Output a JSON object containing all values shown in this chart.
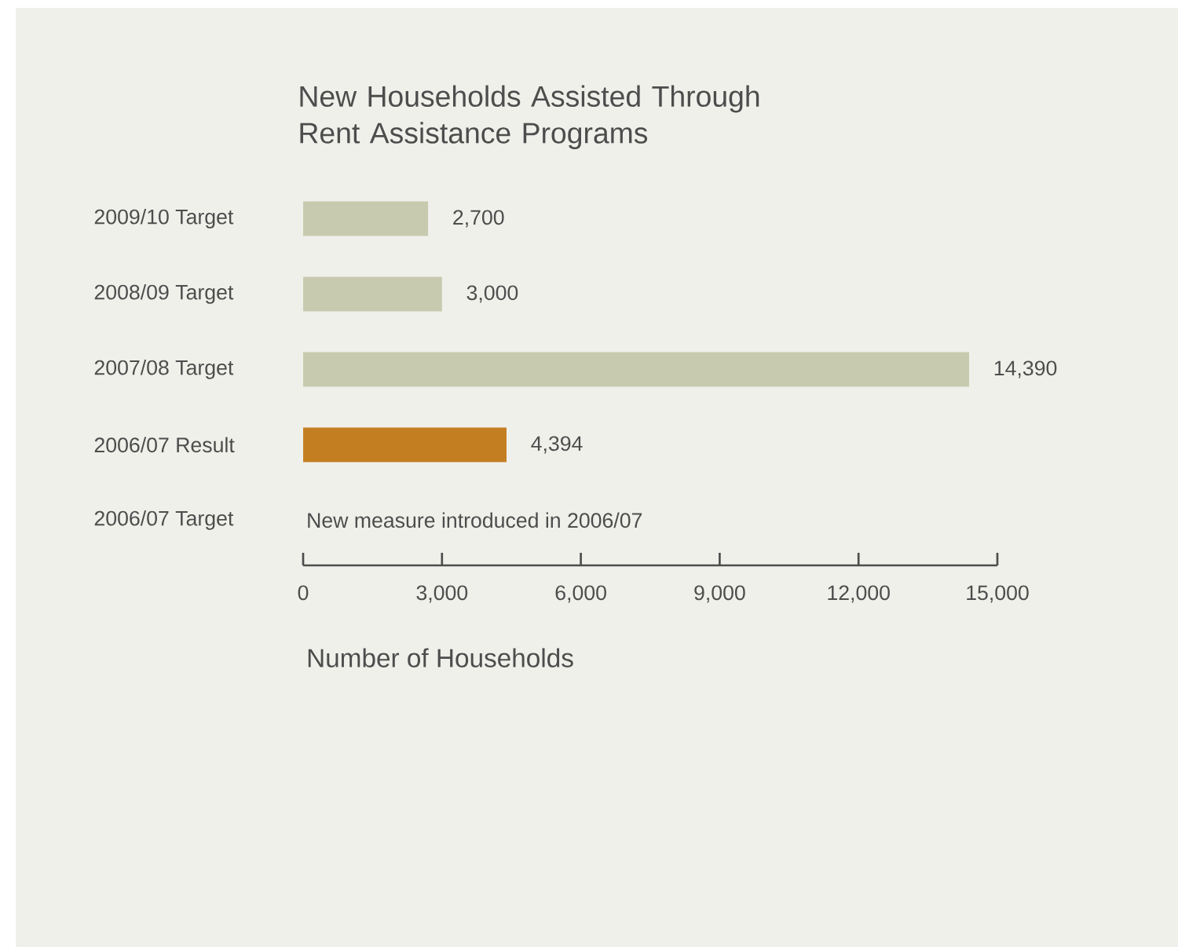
{
  "chart_data": {
    "type": "bar",
    "orientation": "horizontal",
    "title": "New Households Assisted Through Rent Assistance Programs",
    "xlabel": "Number of Households",
    "categories": [
      "2009/10 Target",
      "2008/09 Target",
      "2007/08 Target",
      "2006/07 Result",
      "2006/07 Target"
    ],
    "values": [
      2700,
      3000,
      14390,
      4394,
      null
    ],
    "colors": [
      "#c8caaf",
      "#c8caaf",
      "#c8caaf",
      "#c47e22",
      "#c8caaf"
    ],
    "value_labels": [
      "2,700",
      "3,000",
      "14,390",
      "4,394",
      null
    ],
    "xlim": [
      0,
      15000
    ],
    "xticks": [
      0,
      {
        "value": 3000,
        "label": "3,000"
      },
      {
        "value": 6000,
        "label": "6,000"
      },
      {
        "value": 9000,
        "label": "9,000"
      },
      {
        "value": 12000,
        "label": "12,000"
      },
      {
        "value": 15000,
        "label": "15,000"
      }
    ],
    "annotations": [
      "New measure introduced in 2006/07"
    ]
  }
}
